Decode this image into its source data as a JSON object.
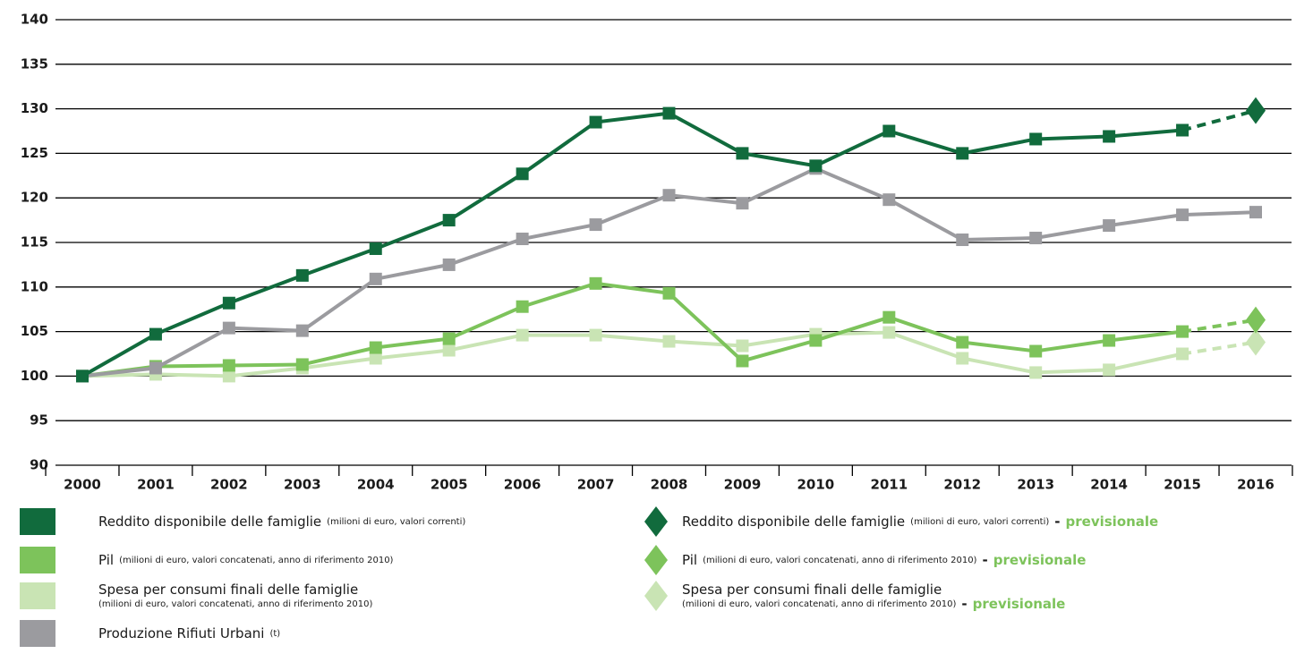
{
  "chart_data": {
    "type": "line",
    "categories": [
      "2000",
      "2001",
      "2002",
      "2003",
      "2004",
      "2005",
      "2006",
      "2007",
      "2008",
      "2009",
      "2010",
      "2011",
      "2012",
      "2013",
      "2014",
      "2015",
      "2016"
    ],
    "ylim": [
      90,
      140
    ],
    "yticks": [
      90,
      95,
      100,
      105,
      110,
      115,
      120,
      125,
      130,
      135,
      140
    ],
    "grid": true,
    "forecast_separator": "-",
    "forecast_label": "previsionale",
    "forecast_color": "#7dc35b",
    "series": [
      {
        "name": "Reddito disponibile delle famiglie",
        "note": "(milioni di euro, valori correnti)",
        "color": "#116b3d",
        "values": [
          100,
          104.7,
          108.2,
          111.3,
          114.3,
          117.5,
          122.7,
          128.5,
          129.5,
          125,
          123.6,
          127.5,
          125,
          126.6,
          126.9,
          127.6,
          null
        ],
        "forecast": [
          null,
          null,
          null,
          null,
          null,
          null,
          null,
          null,
          null,
          null,
          null,
          null,
          null,
          null,
          null,
          null,
          129.8
        ]
      },
      {
        "name": "Pil",
        "note": "(milioni di euro, valori concatenati, anno di riferimento 2010)",
        "color": "#7dc35b",
        "values": [
          100,
          101.1,
          101.2,
          101.3,
          103.2,
          104.2,
          107.8,
          110.4,
          109.3,
          101.7,
          104,
          106.6,
          103.8,
          102.8,
          104,
          105,
          null
        ],
        "forecast": [
          null,
          null,
          null,
          null,
          null,
          null,
          null,
          null,
          null,
          null,
          null,
          null,
          null,
          null,
          null,
          null,
          106.3
        ]
      },
      {
        "name": "Spesa per consumi finali delle famiglie",
        "note": "(milioni di euro, valori concatenati, anno di riferimento 2010)",
        "color": "#c9e4b4",
        "values": [
          100,
          100.2,
          100,
          100.9,
          102,
          102.9,
          104.6,
          104.6,
          103.9,
          103.4,
          104.7,
          104.9,
          102,
          100.4,
          100.7,
          102.5,
          null
        ],
        "forecast": [
          null,
          null,
          null,
          null,
          null,
          null,
          null,
          null,
          null,
          null,
          null,
          null,
          null,
          null,
          null,
          null,
          103.8
        ]
      },
      {
        "name": "Produzione Rifiuti Urbani",
        "note": "(t)",
        "color": "#9b9b9f",
        "values": [
          100,
          100.9,
          105.4,
          105.1,
          110.9,
          112.5,
          115.4,
          117,
          120.3,
          119.4,
          123.3,
          119.8,
          115.3,
          115.5,
          116.9,
          118.1,
          118.4
        ]
      }
    ]
  }
}
